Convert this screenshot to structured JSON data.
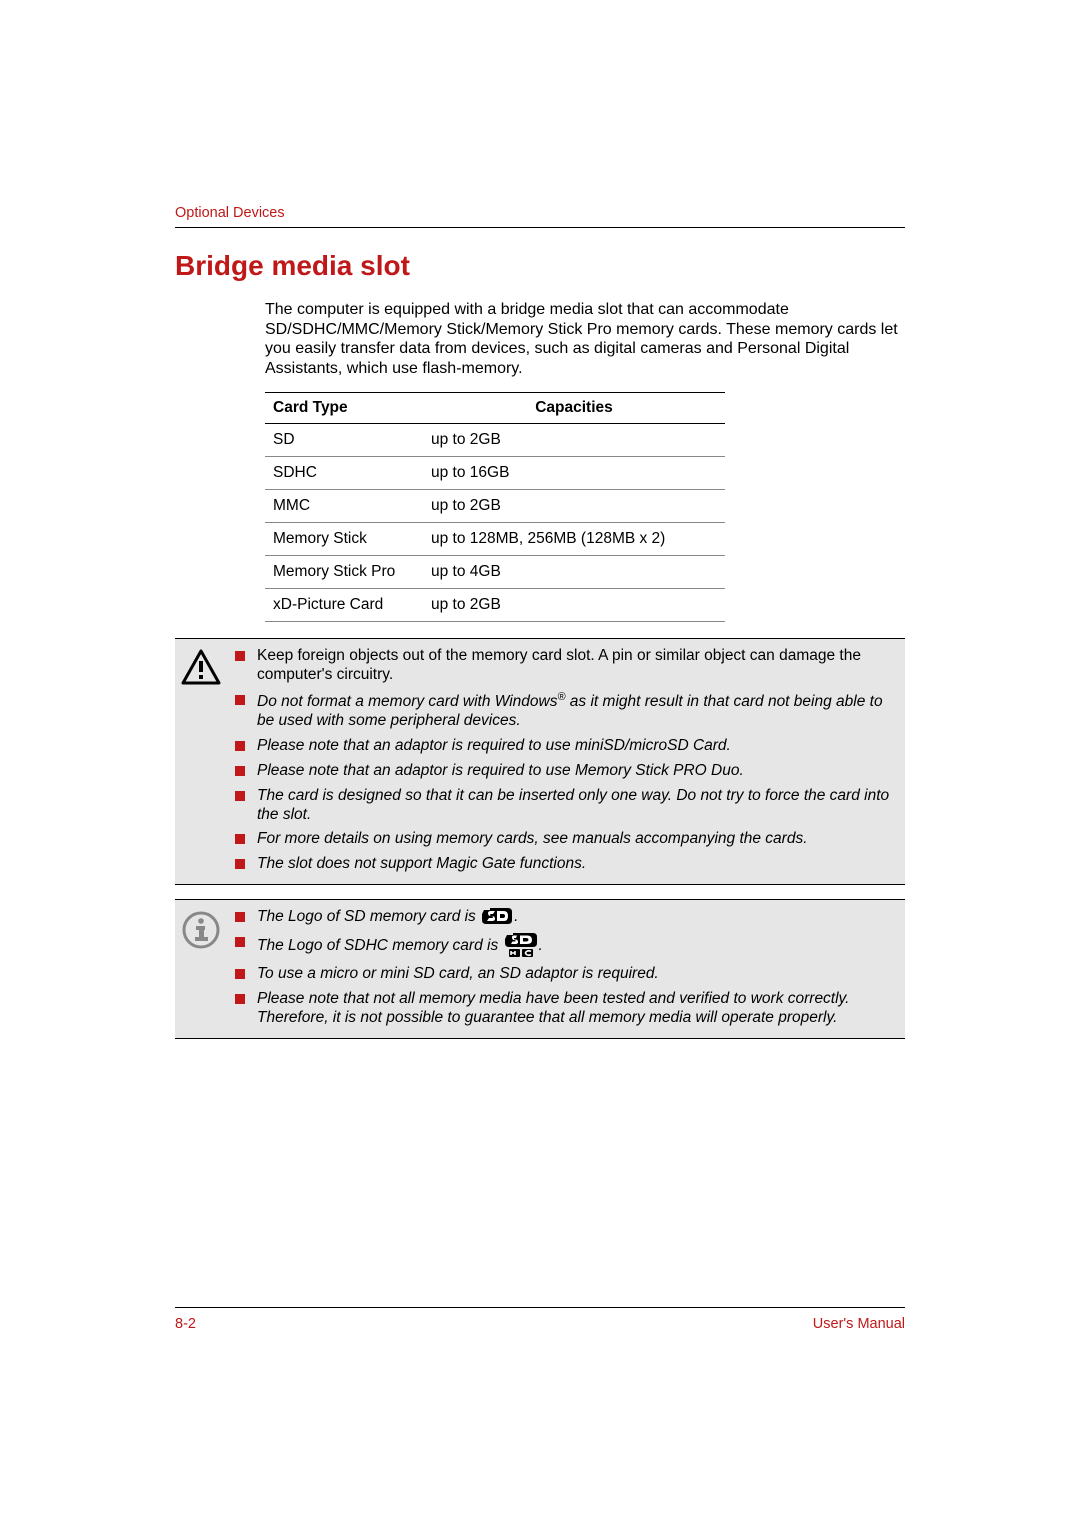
{
  "colors": {
    "accent": "#c01818",
    "text": "#000000",
    "note_bg": "#e6e6e6",
    "rule": "#000000",
    "row_border": "#888888"
  },
  "header": {
    "section_label": "Optional Devices"
  },
  "section": {
    "title": "Bridge media slot",
    "intro": "The computer is equipped with a bridge media slot that can accommodate SD/SDHC/MMC/Memory Stick/Memory Stick Pro memory cards. These memory cards let you easily transfer data from devices, such as digital cameras and Personal Digital Assistants, which use flash-memory."
  },
  "table": {
    "headers": {
      "type": "Card Type",
      "capacity": "Capacities"
    },
    "rows": [
      {
        "type": "SD",
        "capacity": "up to 2GB"
      },
      {
        "type": "SDHC",
        "capacity": "up to 16GB"
      },
      {
        "type": "MMC",
        "capacity": "up to 2GB"
      },
      {
        "type": "Memory Stick",
        "capacity": "up to 128MB, 256MB (128MB x 2)"
      },
      {
        "type": "Memory Stick Pro",
        "capacity": "up to 4GB"
      },
      {
        "type": "xD-Picture Card",
        "capacity": "up to 2GB"
      }
    ]
  },
  "caution": {
    "items": [
      {
        "text": "Keep foreign objects out of the memory card slot. A pin or similar object can damage the computer's circuitry.",
        "italic": false
      },
      {
        "html": "Do not format a memory card with Windows<sup>®</sup> as it might result in that card not being able to be used with some peripheral devices.",
        "italic": true
      },
      {
        "text": "Please note that an adaptor is required to use miniSD/microSD Card.",
        "italic": true
      },
      {
        "text": "Please note that an adaptor is required to use Memory Stick PRO Duo.",
        "italic": true
      },
      {
        "text": "The card is designed so that it can be inserted only one way. Do not try to force the card into the slot.",
        "italic": true
      },
      {
        "text": "For more details on using memory cards, see manuals accompanying the cards.",
        "italic": true
      },
      {
        "text": "The slot does not support Magic Gate functions.",
        "italic": true
      }
    ]
  },
  "info": {
    "items": [
      {
        "prefix": "The Logo of SD memory card is ",
        "logo": "sd",
        "suffix": ".",
        "italic": true
      },
      {
        "prefix": "The Logo of SDHC memory card is ",
        "logo": "sdhc",
        "suffix": ".",
        "italic": true
      },
      {
        "text": "To use a micro or mini SD card, an SD adaptor is required.",
        "italic": true
      },
      {
        "text": "Please note that not all memory media have been tested and verified to work correctly. Therefore, it is not possible to guarantee that all memory media will operate properly.",
        "italic": true
      }
    ]
  },
  "footer": {
    "page": "8-2",
    "manual": "User's Manual"
  },
  "typography": {
    "body_fontsize": 16,
    "title_fontsize": 28,
    "header_fontsize": 14.5,
    "table_fontsize": 15.5
  }
}
